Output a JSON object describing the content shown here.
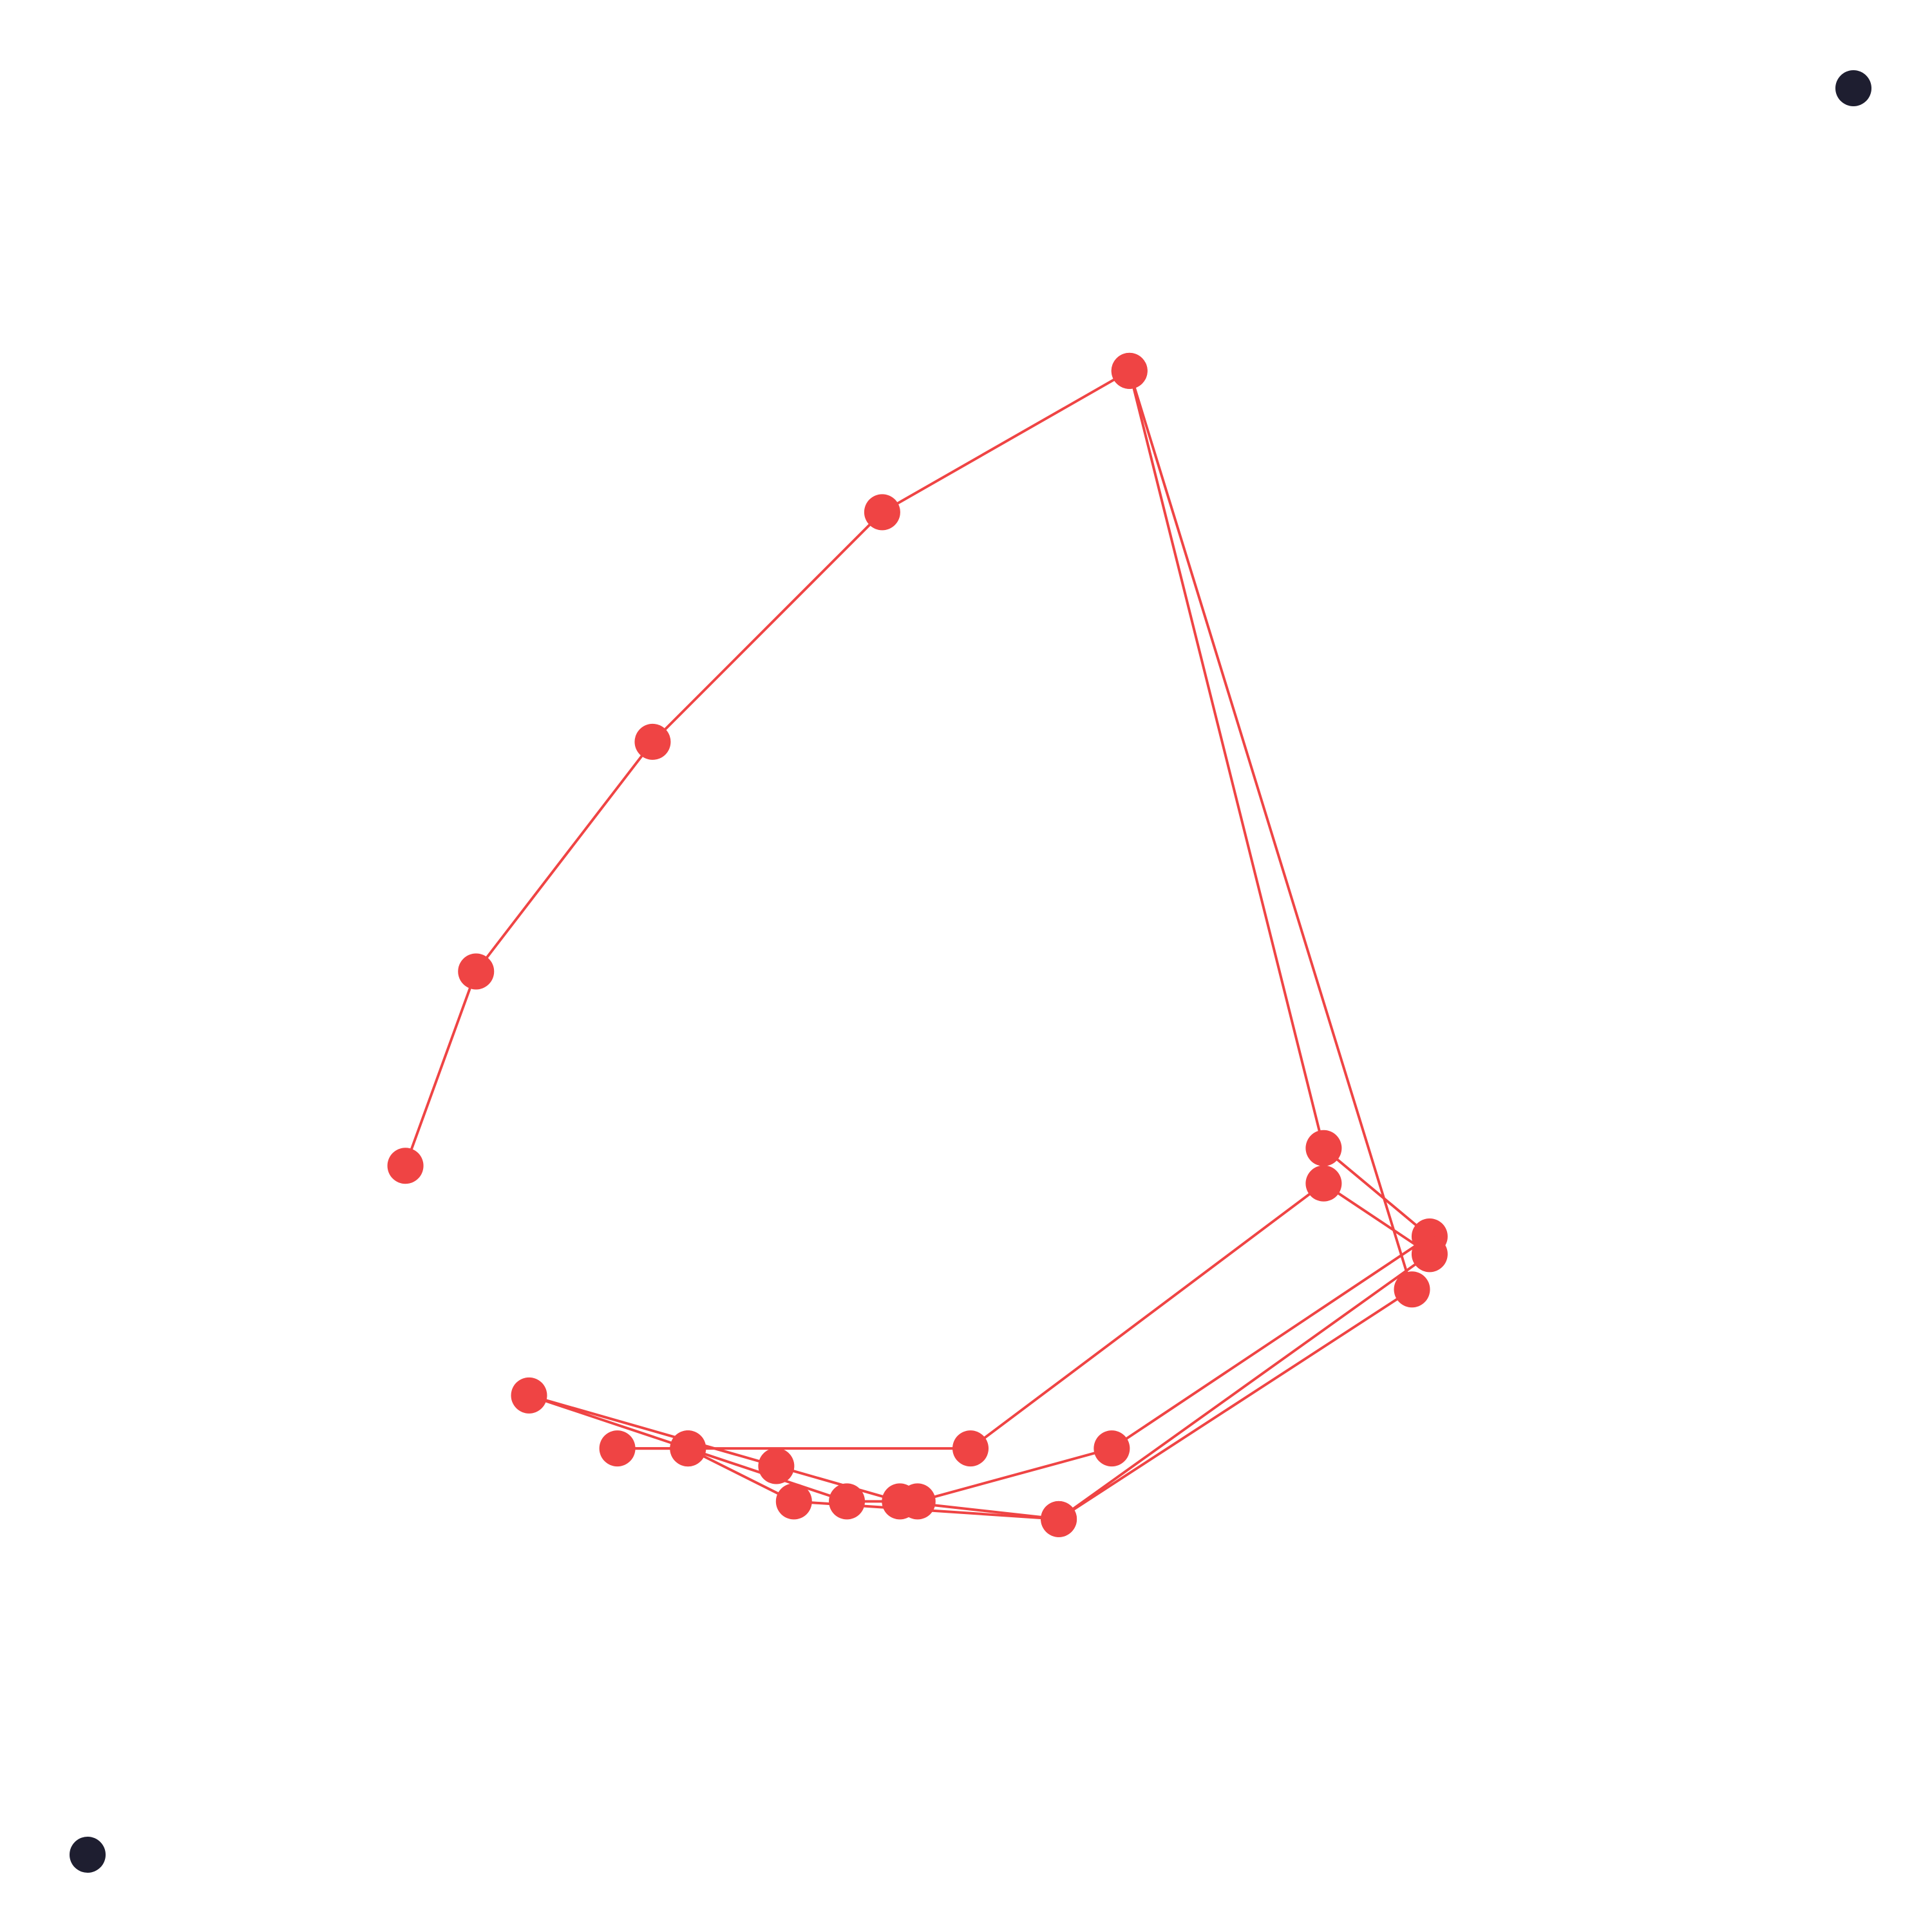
{
  "chart_data": {
    "type": "line",
    "title": "",
    "xlabel": "",
    "ylabel": "",
    "grid": false,
    "legend": "none",
    "xlim": [
      0,
      20
    ],
    "ylim": [
      0,
      20
    ],
    "series": [
      {
        "color": "#ef4444",
        "marker": "circle",
        "points": [
          [
            3.6,
            7.8
          ],
          [
            4.4,
            10.0
          ],
          [
            6.4,
            12.6
          ],
          [
            9.0,
            15.2
          ],
          [
            11.8,
            16.8
          ],
          [
            14.0,
            8.0
          ],
          [
            15.2,
            7.0
          ],
          [
            11.6,
            4.6
          ],
          [
            9.4,
            4.0
          ],
          [
            8.6,
            4.0
          ],
          [
            6.8,
            4.6
          ],
          [
            6.0,
            4.6
          ],
          [
            10.0,
            4.6
          ],
          [
            14.0,
            7.6
          ],
          [
            15.2,
            6.8
          ],
          [
            11.0,
            3.8
          ],
          [
            9.2,
            4.0
          ],
          [
            7.8,
            4.4
          ],
          [
            5.0,
            5.2
          ],
          [
            6.8,
            4.6
          ],
          [
            8.0,
            4.0
          ],
          [
            11.0,
            3.8
          ],
          [
            15.0,
            6.4
          ],
          [
            11.8,
            16.8
          ]
        ]
      }
    ],
    "corner_markers": {
      "color": "#1e1e30",
      "points": [
        [
          0,
          0
        ],
        [
          20,
          20
        ]
      ]
    }
  }
}
